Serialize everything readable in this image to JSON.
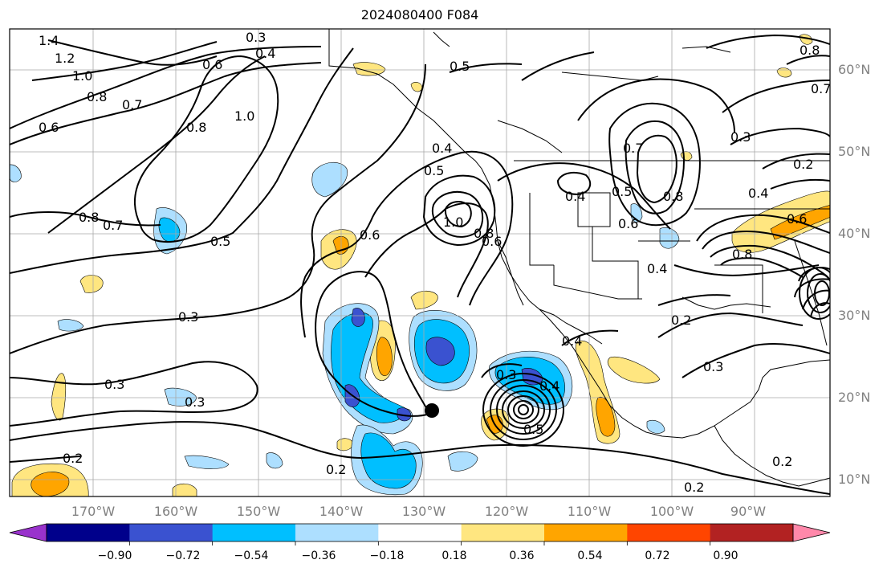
{
  "title": "2024080400 F084",
  "lat_labels": [
    "60°N",
    "50°N",
    "40°N",
    "30°N",
    "20°N",
    "10°N"
  ],
  "lon_labels": [
    "170°W",
    "160°W",
    "150°W",
    "140°W",
    "130°W",
    "120°W",
    "110°W",
    "100°W",
    "90°W"
  ],
  "colorbar": {
    "tick_labels": [
      "−0.90",
      "−0.72",
      "−0.54",
      "−0.36",
      "−0.18",
      "0.18",
      "0.36",
      "0.54",
      "0.72",
      "0.90"
    ],
    "colors": [
      "#9932cc",
      "#00008b",
      "#3a52d0",
      "#00bfff",
      "#addfff",
      "#ffffff",
      "#ffe680",
      "#ffa500",
      "#ff4500",
      "#b22222",
      "#ff88aa"
    ]
  },
  "contour_labels": [
    {
      "text": "1.4"
    },
    {
      "text": "1.2"
    },
    {
      "text": "1.0"
    },
    {
      "text": "0.8"
    },
    {
      "text": "0.7"
    },
    {
      "text": "0.6"
    },
    {
      "text": "0.6"
    },
    {
      "text": "0.4"
    },
    {
      "text": "0.3"
    },
    {
      "text": "0.5"
    },
    {
      "text": "0.8"
    },
    {
      "text": "1.0"
    },
    {
      "text": "0.7"
    },
    {
      "text": "0.8"
    },
    {
      "text": "0.5"
    },
    {
      "text": "0.6"
    },
    {
      "text": "0.5"
    },
    {
      "text": "0.4"
    },
    {
      "text": "1.0"
    },
    {
      "text": "0.8"
    },
    {
      "text": "0.4"
    },
    {
      "text": "0.5"
    },
    {
      "text": "0.7"
    },
    {
      "text": "0.8"
    },
    {
      "text": "0.6"
    },
    {
      "text": "0.3"
    },
    {
      "text": "0.2"
    },
    {
      "text": "0.4"
    },
    {
      "text": "0.6"
    },
    {
      "text": "0.8"
    },
    {
      "text": "0.4"
    },
    {
      "text": "0.2"
    },
    {
      "text": "0.3"
    },
    {
      "text": "0.3"
    },
    {
      "text": "0.3"
    },
    {
      "text": "0.3"
    },
    {
      "text": "0.4"
    },
    {
      "text": "0.5"
    },
    {
      "text": "0.3"
    },
    {
      "text": "0.2"
    },
    {
      "text": "0.2"
    },
    {
      "text": "0.2"
    },
    {
      "text": "0.2"
    },
    {
      "text": "0.6"
    },
    {
      "text": "0.4"
    },
    {
      "text": "0.7"
    },
    {
      "text": "0.8"
    }
  ]
}
